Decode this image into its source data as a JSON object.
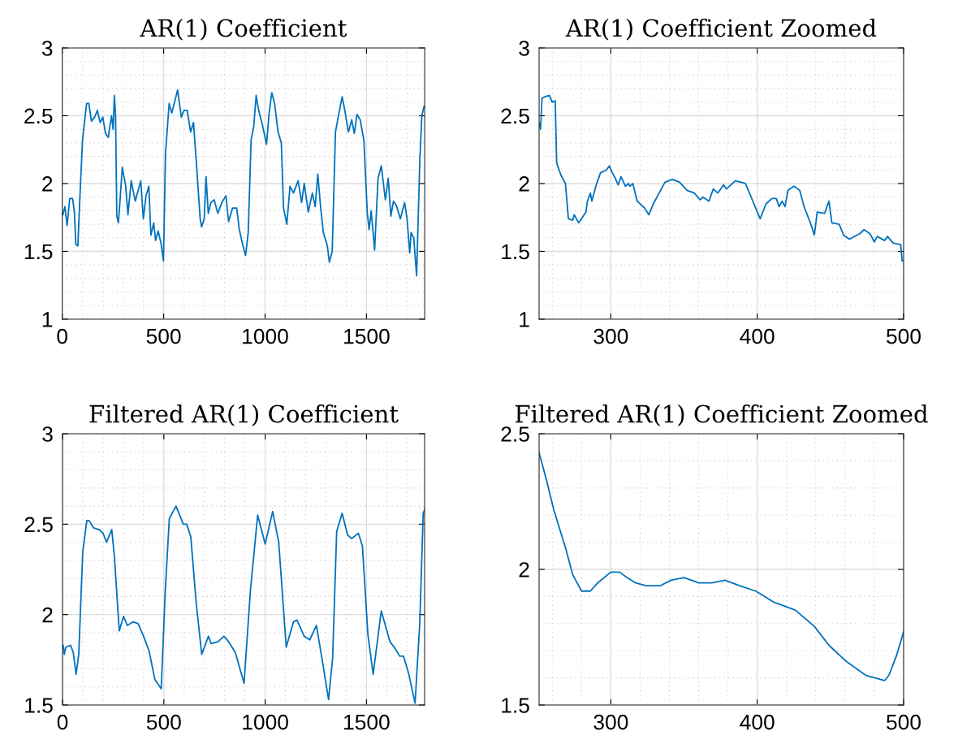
{
  "chart_data": [
    {
      "type": "line",
      "title": "AR(1) Coefficient",
      "xlim": [
        0,
        1787
      ],
      "xticks": [
        0,
        500,
        1000,
        1500
      ],
      "ylim": [
        1,
        3
      ],
      "yticks": [
        1,
        1.5,
        2,
        2.5,
        3
      ],
      "grid": true,
      "color": "#0072bd",
      "x": [
        3,
        13,
        24,
        37,
        51,
        60,
        67,
        77,
        87,
        100,
        120,
        131,
        144,
        160,
        173,
        187,
        200,
        213,
        227,
        243,
        251,
        257,
        263,
        269,
        277,
        287,
        296,
        313,
        324,
        340,
        360,
        387,
        400,
        413,
        427,
        437,
        451,
        460,
        473,
        487,
        499,
        509,
        527,
        540,
        557,
        569,
        587,
        600,
        616,
        633,
        647,
        660,
        680,
        687,
        700,
        709,
        720,
        733,
        749,
        767,
        787,
        807,
        820,
        840,
        860,
        873,
        891,
        904,
        917,
        931,
        944,
        956,
        967,
        987,
        1007,
        1020,
        1033,
        1047,
        1064,
        1080,
        1091,
        1107,
        1123,
        1140,
        1163,
        1180,
        1193,
        1213,
        1233,
        1247,
        1260,
        1273,
        1287,
        1307,
        1317,
        1331,
        1347,
        1363,
        1380,
        1393,
        1411,
        1427,
        1440,
        1453,
        1469,
        1487,
        1504,
        1513,
        1523,
        1540,
        1557,
        1573,
        1593,
        1607,
        1620,
        1633,
        1647,
        1667,
        1688,
        1700,
        1713,
        1720,
        1733,
        1747,
        1763,
        1773,
        1784
      ],
      "values": [
        1.77,
        1.83,
        1.69,
        1.89,
        1.89,
        1.79,
        1.55,
        1.54,
        1.9,
        2.32,
        2.59,
        2.59,
        2.46,
        2.49,
        2.54,
        2.45,
        2.49,
        2.37,
        2.34,
        2.5,
        2.4,
        2.65,
        2.5,
        1.76,
        1.71,
        1.92,
        2.12,
        1.98,
        1.77,
        2.02,
        1.87,
        2.02,
        1.74,
        1.91,
        1.98,
        1.62,
        1.71,
        1.58,
        1.65,
        1.56,
        1.43,
        2.22,
        2.59,
        2.52,
        2.62,
        2.69,
        2.49,
        2.54,
        2.54,
        2.38,
        2.45,
        2.18,
        1.74,
        1.68,
        1.74,
        2.05,
        1.78,
        1.86,
        1.88,
        1.78,
        1.86,
        1.91,
        1.72,
        1.82,
        1.82,
        1.66,
        1.54,
        1.47,
        1.64,
        2.32,
        2.42,
        2.65,
        2.55,
        2.43,
        2.29,
        2.52,
        2.67,
        2.59,
        2.38,
        2.3,
        1.82,
        1.7,
        1.98,
        1.93,
        2.02,
        1.86,
        2.0,
        1.79,
        1.93,
        1.83,
        2.07,
        1.84,
        1.64,
        1.54,
        1.42,
        1.5,
        2.38,
        2.51,
        2.64,
        2.54,
        2.38,
        2.47,
        2.37,
        2.51,
        2.47,
        2.32,
        1.78,
        1.66,
        1.8,
        1.51,
        2.04,
        2.13,
        1.88,
        2.04,
        1.76,
        1.87,
        1.84,
        1.74,
        1.86,
        1.74,
        1.49,
        1.64,
        1.6,
        1.32,
        2.18,
        2.5,
        2.57
      ]
    },
    {
      "type": "line",
      "title": "AR(1) Coefficient Zoomed",
      "xlim": [
        251,
        500
      ],
      "xticks": [
        300,
        400,
        500
      ],
      "ylim": [
        1,
        3
      ],
      "yticks": [
        1,
        1.5,
        2,
        2.5,
        3
      ],
      "grid": true,
      "color": "#0072bd",
      "x": [
        251,
        252,
        253,
        255,
        258,
        260,
        262,
        263,
        266,
        269,
        271,
        274,
        275,
        278,
        283,
        284,
        286,
        287,
        290,
        293,
        297,
        299,
        301,
        303,
        305,
        307,
        310,
        312,
        313,
        315,
        318,
        323,
        326,
        329,
        333,
        337,
        342,
        347,
        352,
        357,
        361,
        363,
        367,
        370,
        373,
        377,
        379,
        385,
        389,
        392,
        397,
        402,
        406,
        410,
        413,
        415,
        417,
        419,
        421,
        425,
        429,
        432,
        437,
        439,
        441,
        446,
        449,
        451,
        456,
        459,
        463,
        470,
        473,
        477,
        480,
        482,
        487,
        489,
        493,
        498,
        499,
        500
      ],
      "values": [
        2.45,
        2.4,
        2.63,
        2.64,
        2.65,
        2.6,
        2.61,
        2.15,
        2.06,
        2.0,
        1.74,
        1.73,
        1.77,
        1.71,
        1.79,
        1.87,
        1.93,
        1.87,
        1.99,
        2.08,
        2.1,
        2.13,
        2.08,
        2.04,
        1.99,
        2.05,
        1.98,
        2.0,
        1.98,
        2.0,
        1.87,
        1.82,
        1.77,
        1.85,
        1.93,
        2.01,
        2.03,
        2.01,
        1.95,
        1.93,
        1.88,
        1.9,
        1.87,
        1.96,
        1.93,
        1.99,
        1.96,
        2.02,
        2.01,
        2.0,
        1.87,
        1.74,
        1.85,
        1.89,
        1.89,
        1.83,
        1.87,
        1.83,
        1.95,
        1.98,
        1.95,
        1.83,
        1.69,
        1.62,
        1.79,
        1.78,
        1.87,
        1.71,
        1.7,
        1.62,
        1.59,
        1.63,
        1.66,
        1.63,
        1.57,
        1.61,
        1.58,
        1.61,
        1.56,
        1.55,
        1.43,
        1.43
      ]
    },
    {
      "type": "line",
      "title": "Filtered AR(1) Coefficient",
      "xlim": [
        0,
        1787
      ],
      "xticks": [
        0,
        500,
        1000,
        1500
      ],
      "ylim": [
        1.5,
        3
      ],
      "yticks": [
        1.5,
        2,
        2.5,
        3
      ],
      "grid": true,
      "color": "#0072bd",
      "x": [
        3,
        9,
        16,
        40,
        53,
        67,
        80,
        100,
        120,
        131,
        153,
        180,
        200,
        217,
        243,
        256,
        280,
        301,
        320,
        349,
        373,
        400,
        427,
        456,
        487,
        507,
        527,
        560,
        596,
        613,
        633,
        660,
        687,
        720,
        733,
        767,
        797,
        820,
        853,
        896,
        927,
        963,
        1000,
        1037,
        1067,
        1104,
        1140,
        1157,
        1193,
        1220,
        1253,
        1280,
        1313,
        1333,
        1353,
        1380,
        1407,
        1427,
        1460,
        1480,
        1507,
        1533,
        1573,
        1616,
        1637,
        1664,
        1683,
        1707,
        1740,
        1763,
        1780,
        1787
      ],
      "values": [
        1.83,
        1.78,
        1.82,
        1.83,
        1.79,
        1.67,
        1.78,
        2.35,
        2.52,
        2.52,
        2.48,
        2.47,
        2.45,
        2.4,
        2.47,
        2.32,
        1.91,
        1.99,
        1.94,
        1.96,
        1.95,
        1.88,
        1.8,
        1.64,
        1.59,
        2.13,
        2.53,
        2.6,
        2.5,
        2.5,
        2.43,
        2.06,
        1.78,
        1.88,
        1.84,
        1.85,
        1.88,
        1.85,
        1.79,
        1.62,
        2.13,
        2.55,
        2.39,
        2.57,
        2.4,
        1.82,
        1.96,
        1.97,
        1.88,
        1.86,
        1.94,
        1.76,
        1.53,
        1.76,
        2.46,
        2.56,
        2.44,
        2.42,
        2.45,
        2.38,
        1.89,
        1.67,
        2.02,
        1.85,
        1.82,
        1.77,
        1.77,
        1.68,
        1.51,
        1.95,
        2.56,
        2.58
      ]
    },
    {
      "type": "line",
      "title": "Filtered AR(1) Coefficient Zoomed",
      "xlim": [
        251,
        500
      ],
      "xticks": [
        300,
        400,
        500
      ],
      "ylim": [
        1.5,
        2.5
      ],
      "yticks": [
        1.5,
        2,
        2.5
      ],
      "grid": true,
      "color": "#0072bd",
      "x": [
        251,
        256,
        261,
        269,
        274,
        280,
        286,
        291,
        300,
        306,
        311,
        317,
        324,
        334,
        341,
        350,
        360,
        369,
        378,
        388,
        399,
        411,
        426,
        439,
        449,
        461,
        474,
        487,
        490,
        495,
        500
      ],
      "values": [
        2.43,
        2.33,
        2.22,
        2.08,
        1.98,
        1.92,
        1.92,
        1.95,
        1.99,
        1.99,
        1.97,
        1.95,
        1.94,
        1.94,
        1.96,
        1.97,
        1.95,
        1.95,
        1.96,
        1.94,
        1.92,
        1.88,
        1.85,
        1.79,
        1.72,
        1.66,
        1.61,
        1.59,
        1.61,
        1.68,
        1.77
      ]
    }
  ]
}
